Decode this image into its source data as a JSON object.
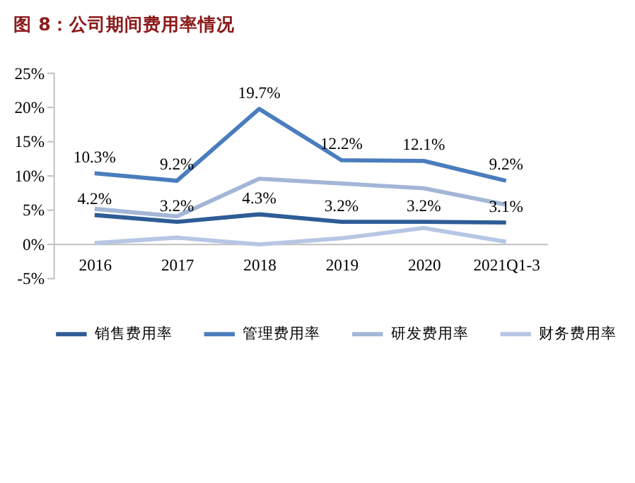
{
  "chart_data": {
    "type": "line",
    "title": "图 8：公司期间费用率情况",
    "categories": [
      "2016",
      "2017",
      "2018",
      "2019",
      "2020",
      "2021Q1-3"
    ],
    "series": [
      {
        "name": "销售费用率",
        "color": "#2e5c96",
        "values": [
          4.2,
          3.2,
          4.3,
          3.2,
          3.2,
          3.1
        ],
        "value_labels": [
          "4.2%",
          "3.2%",
          "4.3%",
          "3.2%",
          "3.2%",
          "3.1%"
        ]
      },
      {
        "name": "管理费用率",
        "color": "#4a7dbd",
        "values": [
          10.3,
          9.2,
          19.7,
          12.2,
          12.1,
          9.2
        ],
        "value_labels": [
          "10.3%",
          "9.2%",
          "19.7%",
          "12.2%",
          "12.1%",
          "9.2%"
        ]
      },
      {
        "name": "研发费用率",
        "color": "#a3b6d6",
        "values": [
          5.1,
          4.0,
          9.5,
          8.8,
          8.1,
          5.7
        ]
      },
      {
        "name": "财务费用率",
        "color": "#b6c6e3",
        "values": [
          0.1,
          0.9,
          -0.1,
          0.8,
          2.3,
          0.3
        ]
      }
    ],
    "ylim": [
      -5,
      25
    ],
    "yticks": [
      {
        "value": -5,
        "label": "-5%"
      },
      {
        "value": 0,
        "label": "0%"
      },
      {
        "value": 5,
        "label": "5%"
      },
      {
        "value": 10,
        "label": "10%"
      },
      {
        "value": 15,
        "label": "15%"
      },
      {
        "value": 20,
        "label": "20%"
      },
      {
        "value": 25,
        "label": "25%"
      }
    ],
    "grid": false,
    "legend": "bottom",
    "marker": "none",
    "line_style": "solid"
  }
}
